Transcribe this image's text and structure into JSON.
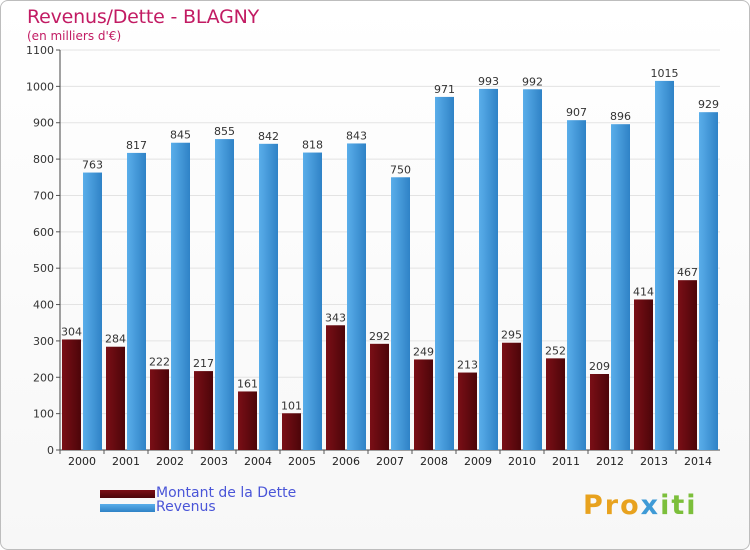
{
  "chart_data": {
    "type": "bar",
    "title": "Revenus/Dette - BLAGNY",
    "subtitle": "(en milliers d'€)",
    "categories": [
      "2000",
      "2001",
      "2002",
      "2003",
      "2004",
      "2005",
      "2006",
      "2007",
      "2008",
      "2009",
      "2010",
      "2011",
      "2012",
      "2013",
      "2014"
    ],
    "series": [
      {
        "name": "Montant de la Dette",
        "color": "#7a0f16",
        "values": [
          304,
          284,
          222,
          217,
          161,
          101,
          343,
          292,
          249,
          213,
          295,
          252,
          209,
          414,
          467
        ]
      },
      {
        "name": "Revenus",
        "color": "#4a9fdf",
        "values": [
          763,
          817,
          845,
          855,
          842,
          818,
          843,
          750,
          971,
          993,
          992,
          907,
          896,
          1015,
          929
        ]
      }
    ],
    "ylim": [
      0,
      1100
    ],
    "yticks": [
      0,
      100,
      200,
      300,
      400,
      500,
      600,
      700,
      800,
      900,
      1000,
      1100
    ],
    "grid": true,
    "legend": "bottom-left"
  },
  "logo": {
    "p1": "Pro",
    "p2": "x",
    "p3": "iti"
  }
}
